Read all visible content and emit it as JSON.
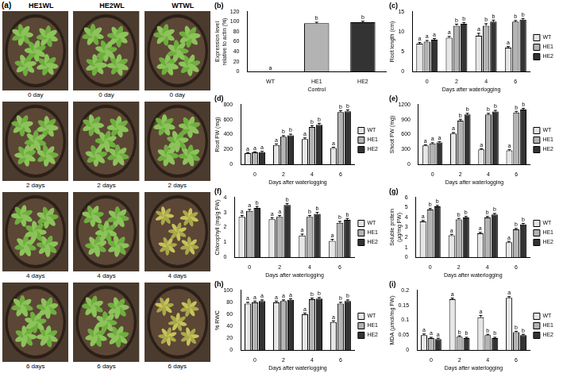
{
  "photo_panel": {
    "label": "(a)",
    "columns": [
      "HE1WL",
      "HE2WL",
      "WTWL"
    ],
    "rows": [
      "0 day",
      "2 days",
      "4 days",
      "6 days"
    ]
  },
  "chart_data": [
    {
      "type": "bar",
      "label": "(b)",
      "y_label": "Expression level relative to actin (%)",
      "x_label": "Control",
      "categories": [
        "WT",
        "HE1",
        "HE2"
      ],
      "values": [
        0,
        97,
        99
      ],
      "errors": [
        0,
        2,
        2
      ],
      "letters": [
        "a",
        "b",
        "b"
      ],
      "colors": [
        "#e6e6e6",
        "#b3b3b3",
        "#333333"
      ],
      "ylim": [
        0,
        120
      ],
      "yticks": [
        0,
        20,
        40,
        60,
        80,
        100,
        120
      ],
      "grid": false
    },
    {
      "type": "bar",
      "label": "(c)",
      "y_label": "Root length (cm)",
      "x_label": "Days after waterlogging",
      "categories": [
        0,
        2,
        4,
        6
      ],
      "legend": "right",
      "grid": false,
      "ylim": [
        0,
        15
      ],
      "yticks": [
        0,
        5,
        10,
        15
      ],
      "series": [
        {
          "name": "WT",
          "color": "#e6e6e6",
          "values": [
            7,
            8.5,
            9,
            6
          ],
          "errors": [
            0.3,
            0.3,
            0.6,
            0.3
          ],
          "letters": [
            "a",
            "a",
            "a",
            "a"
          ]
        },
        {
          "name": "HE1",
          "color": "#b3b3b3",
          "values": [
            7.5,
            11.5,
            11.5,
            12.5
          ],
          "errors": [
            0.3,
            0.4,
            0.5,
            0.3
          ],
          "letters": [
            "a",
            "b",
            "b",
            "b"
          ]
        },
        {
          "name": "HE2",
          "color": "#333333",
          "values": [
            8,
            12,
            12.5,
            13
          ],
          "errors": [
            0.3,
            0.3,
            0.4,
            0.3
          ],
          "letters": [
            "a",
            "b",
            "b",
            "b"
          ]
        }
      ]
    },
    {
      "type": "bar",
      "label": "(d)",
      "y_label": "Root FW (mg)",
      "x_label": "Days after waterlogging",
      "categories": [
        0,
        2,
        4,
        6
      ],
      "legend": "right",
      "grid": false,
      "ylim": [
        0,
        800
      ],
      "yticks": [
        0,
        200,
        400,
        600,
        800
      ],
      "series": [
        {
          "name": "WT",
          "color": "#e6e6e6",
          "values": [
            150,
            260,
            340,
            220
          ],
          "errors": [
            10,
            15,
            15,
            10
          ],
          "letters": [
            "a",
            "a",
            "a",
            "a"
          ]
        },
        {
          "name": "HE1",
          "color": "#b3b3b3",
          "values": [
            160,
            370,
            500,
            700
          ],
          "errors": [
            10,
            15,
            20,
            20
          ],
          "letters": [
            "a",
            "b",
            "b",
            "b"
          ]
        },
        {
          "name": "HE2",
          "color": "#333333",
          "values": [
            165,
            390,
            530,
            710
          ],
          "errors": [
            10,
            15,
            20,
            20
          ],
          "letters": [
            "a",
            "b",
            "b",
            "b"
          ]
        }
      ]
    },
    {
      "type": "bar",
      "label": "(e)",
      "y_label": "Shoot FW (mg)",
      "x_label": "Days after waterlogging",
      "categories": [
        0,
        2,
        4,
        6
      ],
      "legend": "right",
      "grid": false,
      "ylim": [
        0,
        1200
      ],
      "yticks": [
        0,
        300,
        600,
        900,
        1200
      ],
      "series": [
        {
          "name": "WT",
          "color": "#e6e6e6",
          "values": [
            380,
            620,
            300,
            280
          ],
          "errors": [
            15,
            20,
            15,
            15
          ],
          "letters": [
            "a",
            "a",
            "a",
            "a"
          ]
        },
        {
          "name": "HE1",
          "color": "#b3b3b3",
          "values": [
            420,
            880,
            1000,
            1040
          ],
          "errors": [
            15,
            25,
            25,
            25
          ],
          "letters": [
            "a",
            "b",
            "b",
            "b"
          ]
        },
        {
          "name": "HE2",
          "color": "#333333",
          "values": [
            440,
            1000,
            1060,
            1100
          ],
          "errors": [
            15,
            25,
            25,
            25
          ],
          "letters": [
            "a",
            "b",
            "b",
            "b"
          ]
        }
      ]
    },
    {
      "type": "bar",
      "label": "(f)",
      "y_label": "Chlorophyll (mg/g FW)",
      "x_label": "Days after waterlogging",
      "categories": [
        0,
        2,
        4,
        6
      ],
      "legend": "right",
      "grid": false,
      "ylim": [
        0,
        4
      ],
      "yticks": [
        0,
        1,
        2,
        3,
        4
      ],
      "series": [
        {
          "name": "WT",
          "color": "#e6e6e6",
          "values": [
            2.7,
            2.55,
            1.45,
            1.1
          ],
          "errors": [
            0.1,
            0.1,
            0.1,
            0.1
          ],
          "letters": [
            "a",
            "a",
            "a",
            "a"
          ]
        },
        {
          "name": "HE1",
          "color": "#b3b3b3",
          "values": [
            3.1,
            2.7,
            2.7,
            2.3
          ],
          "errors": [
            0.1,
            0.1,
            0.1,
            0.1
          ],
          "letters": [
            "a",
            "a",
            "b",
            "b"
          ]
        },
        {
          "name": "HE2",
          "color": "#333333",
          "values": [
            3.3,
            3.5,
            2.9,
            2.5
          ],
          "errors": [
            0.1,
            0.1,
            0.1,
            0.1
          ],
          "letters": [
            "b",
            "b",
            "b",
            "b"
          ]
        }
      ]
    },
    {
      "type": "bar",
      "label": "(g)",
      "y_label": "Soluble protein (µg/mg FW)",
      "x_label": "Days after waterlogging",
      "categories": [
        0,
        2,
        4,
        6
      ],
      "legend": "right",
      "grid": false,
      "ylim": [
        0,
        6
      ],
      "yticks": [
        0,
        1,
        2,
        3,
        4,
        5,
        6
      ],
      "series": [
        {
          "name": "WT",
          "color": "#e6e6e6",
          "values": [
            3.6,
            2.2,
            2.4,
            1.5
          ],
          "errors": [
            0.1,
            0.1,
            0.1,
            0.1
          ],
          "letters": [
            "a",
            "a",
            "a",
            "a"
          ]
        },
        {
          "name": "HE1",
          "color": "#b3b3b3",
          "values": [
            4.8,
            3.8,
            4,
            2.8
          ],
          "errors": [
            0.1,
            0.1,
            0.1,
            0.1
          ],
          "letters": [
            "b",
            "b",
            "b",
            "b"
          ]
        },
        {
          "name": "HE2",
          "color": "#333333",
          "values": [
            5.1,
            4,
            4.3,
            3.3
          ],
          "errors": [
            0.1,
            0.1,
            0.1,
            0.1
          ],
          "letters": [
            "b",
            "b",
            "b",
            "b"
          ]
        }
      ]
    },
    {
      "type": "bar",
      "label": "(h)",
      "y_label": "% RWC",
      "x_label": "Days after waterlogging",
      "categories": [
        0,
        2,
        4,
        6
      ],
      "legend": "right",
      "grid": false,
      "ylim": [
        0,
        100
      ],
      "yticks": [
        0,
        20,
        40,
        60,
        80,
        100
      ],
      "series": [
        {
          "name": "WT",
          "color": "#e6e6e6",
          "values": [
            78,
            80,
            60,
            47
          ],
          "errors": [
            2,
            2,
            2,
            2
          ],
          "letters": [
            "a",
            "a",
            "a",
            "a"
          ]
        },
        {
          "name": "HE1",
          "color": "#b3b3b3",
          "values": [
            80,
            82,
            85,
            78
          ],
          "errors": [
            2,
            2,
            2,
            2
          ],
          "letters": [
            "a",
            "a",
            "b",
            "b"
          ]
        },
        {
          "name": "HE2",
          "color": "#333333",
          "values": [
            82,
            84,
            86,
            82
          ],
          "errors": [
            2,
            2,
            2,
            2
          ],
          "letters": [
            "a",
            "a",
            "b",
            "b"
          ]
        }
      ]
    },
    {
      "type": "bar",
      "label": "(i)",
      "y_label": "MDA (µmol/mg FW)",
      "x_label": "Days after waterlogging",
      "categories": [
        0,
        2,
        4,
        6
      ],
      "legend": "right",
      "grid": false,
      "ylim": [
        0,
        0.2
      ],
      "yticks": [
        0,
        0.05,
        0.1,
        0.15,
        0.2
      ],
      "series": [
        {
          "name": "WT",
          "color": "#e6e6e6",
          "values": [
            0.05,
            0.17,
            0.11,
            0.175
          ],
          "errors": [
            0.004,
            0.004,
            0.006,
            0.004
          ],
          "letters": [
            "a",
            "a",
            "a",
            "a"
          ]
        },
        {
          "name": "HE1",
          "color": "#b3b3b3",
          "values": [
            0.04,
            0.045,
            0.05,
            0.06
          ],
          "errors": [
            0.003,
            0.003,
            0.003,
            0.003
          ],
          "letters": [
            "a",
            "b",
            "b",
            "b"
          ]
        },
        {
          "name": "HE2",
          "color": "#333333",
          "values": [
            0.037,
            0.04,
            0.04,
            0.05
          ],
          "errors": [
            0.003,
            0.003,
            0.003,
            0.003
          ],
          "letters": [
            "a",
            "b",
            "b",
            "b"
          ]
        }
      ]
    }
  ]
}
